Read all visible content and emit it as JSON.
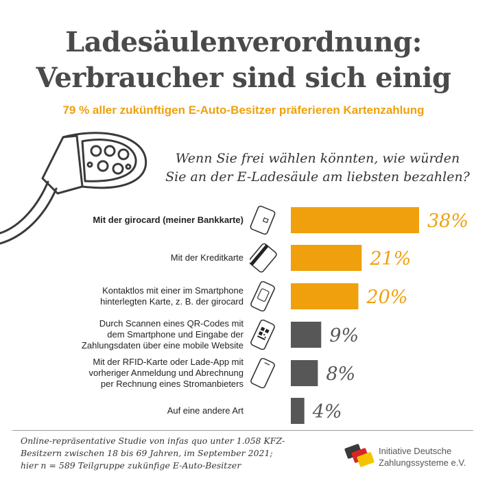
{
  "header": {
    "title_line1": "Ladesäulenverordnung:",
    "title_line2": "Verbraucher sind sich einig",
    "subtitle": "79 % aller zukünftigen E-Auto-Besitzer präferieren Kartenzahlung"
  },
  "question": {
    "line1": "Wenn Sie frei wählen könnten, wie würden",
    "line2": "Sie an der E-Ladesäule am liebsten bezahlen?"
  },
  "colors": {
    "highlight": "#f0a00c",
    "neutral": "#575757",
    "title": "#4a4a4a"
  },
  "chart_data": {
    "type": "bar",
    "orientation": "horizontal",
    "categories": [
      "Mit der girocard (meiner Bankkarte)",
      "Mit der Kreditkarte",
      "Kontaktlos mit einer im Smartphone hinterlegten Karte, z. B. der girocard",
      "Durch Scannen eines QR-Codes mit dem Smartphone und Eingabe der Zahlungsdaten über eine mobile Website",
      "Mit der RFID-Karte oder Lade-App mit vorheriger Anmeldung und Abrechnung per Rechnung eines Stromanbieters",
      "Auf eine andere Art"
    ],
    "values": [
      38,
      21,
      20,
      9,
      8,
      4
    ],
    "value_labels": [
      "38%",
      "21%",
      "20%",
      "9%",
      "8%",
      "4%"
    ],
    "highlighted": [
      true,
      true,
      true,
      false,
      false,
      false
    ],
    "icons": [
      "card-icon",
      "credit-card-icon",
      "phone-card-icon",
      "phone-qr-icon",
      "phone-icon",
      ""
    ],
    "xlim": [
      0,
      40
    ]
  },
  "rows": [
    {
      "label_lines": [
        "Mit der girocard (meiner Bankkarte)"
      ],
      "bold": true
    },
    {
      "label_lines": [
        "Mit der Kreditkarte"
      ],
      "bold": false
    },
    {
      "label_lines": [
        "Kontaktlos mit einer im Smartphone",
        "hinterlegten Karte, z. B. der girocard"
      ],
      "bold": false
    },
    {
      "label_lines": [
        "Durch Scannen eines QR-Codes mit",
        "dem Smartphone und Eingabe der",
        "Zahlungsdaten über eine mobile Website"
      ],
      "bold": false
    },
    {
      "label_lines": [
        "Mit der RFID-Karte oder Lade-App mit",
        "vorheriger Anmeldung und Abrechnung",
        "per Rechnung eines Stromanbieters"
      ],
      "bold": false
    },
    {
      "label_lines": [
        "Auf eine andere Art"
      ],
      "bold": false
    }
  ],
  "footer": {
    "note_line1": "Online-repräsentative Studie von infas quo unter 1.058 KFZ-",
    "note_line2": "Besitzern zwischen 18 bis 69 Jahren, im September 2021;",
    "note_line3": "hier n = 589 Teilgruppe zukünfige E-Auto-Besitzer",
    "logo_line1": "Initiative Deutsche",
    "logo_line2": "Zahlungssysteme e.V."
  }
}
